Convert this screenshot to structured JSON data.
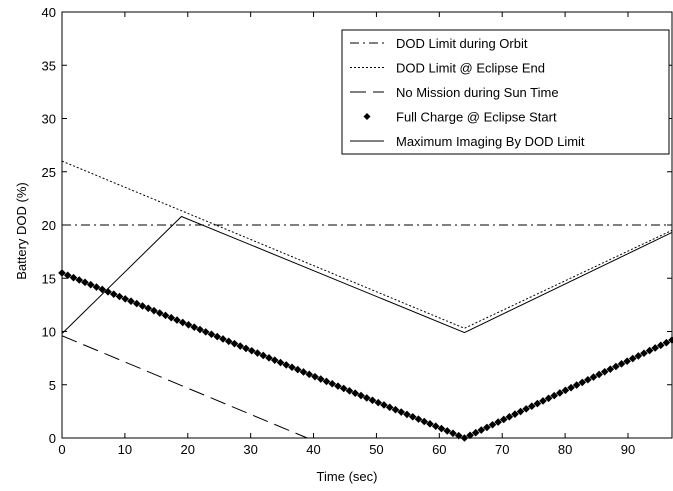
{
  "chart_data": {
    "type": "line",
    "xlabel": "Time (sec)",
    "ylabel": "Battery DOD (%)",
    "xlim": [
      0,
      97
    ],
    "ylim": [
      0,
      40
    ],
    "xticks": [
      0,
      10,
      20,
      30,
      40,
      50,
      60,
      70,
      80,
      90
    ],
    "yticks": [
      0,
      5,
      10,
      15,
      20,
      25,
      30,
      35,
      40
    ],
    "grid": false,
    "legend_position": "top-right",
    "series": [
      {
        "name": "DOD Limit during Orbit",
        "style": "dashdot",
        "color": "#000000",
        "x": [
          0,
          97
        ],
        "y": [
          20,
          20
        ]
      },
      {
        "name": "DOD Limit @ Eclipse End",
        "style": "dotted",
        "color": "#000000",
        "x": [
          0,
          64,
          97
        ],
        "y": [
          26,
          10.3,
          19.5
        ]
      },
      {
        "name": "No Mission during Sun Time",
        "style": "dashed",
        "color": "#000000",
        "x": [
          0,
          39
        ],
        "y": [
          9.6,
          0
        ]
      },
      {
        "name": "Full Charge @ Eclipse Start",
        "style": "diamond-markers",
        "color": "#000000",
        "x": [
          0,
          64,
          97
        ],
        "y": [
          15.5,
          0,
          9.2
        ]
      },
      {
        "name": "Maximum Imaging By DOD Limit",
        "style": "solid",
        "color": "#000000",
        "x": [
          0,
          19,
          64,
          97
        ],
        "y": [
          9.8,
          20.8,
          9.9,
          19.3
        ]
      }
    ]
  }
}
